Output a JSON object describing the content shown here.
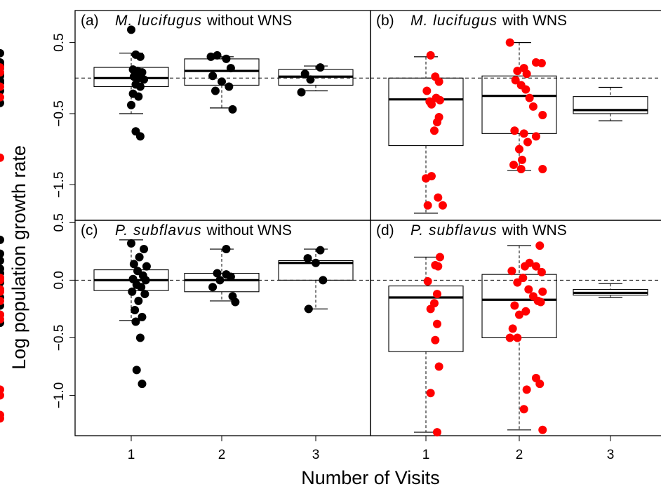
{
  "figure": {
    "ylabel": "Log population growth rate",
    "xlabel": "Number of Visits"
  },
  "colors": {
    "without_wns": "#000000",
    "with_wns": "#ff0000"
  },
  "chart_data": [
    {
      "type": "boxplot",
      "panel_letter": "(a)",
      "title_species": "M. lucifugus",
      "title_rest": "without WNS",
      "point_color": "#000000",
      "categories": [
        "1",
        "2",
        "3"
      ],
      "ylim": [
        -2.0,
        0.95
      ],
      "yticks": [
        0.5,
        -0.5,
        -1.5
      ],
      "ytick_labels": [
        "0.5",
        "-0.5",
        "-1.5"
      ],
      "reference_line_y": 0,
      "boxes": [
        {
          "x": 1,
          "lower": -0.5,
          "q1": -0.12,
          "median": 0.0,
          "q3": 0.15,
          "upper": 0.35
        },
        {
          "x": 2,
          "lower": -0.42,
          "q1": -0.1,
          "median": 0.1,
          "q3": 0.27,
          "upper": 0.3
        },
        {
          "x": 3,
          "lower": -0.18,
          "q1": -0.1,
          "median": 0.02,
          "q3": 0.12,
          "upper": 0.17
        }
      ],
      "points": [
        [
          0.95,
          0.35
        ],
        [
          1.0,
          0.68
        ],
        [
          1.05,
          0.33
        ],
        [
          1.1,
          0.3
        ],
        [
          0.88,
          0.22
        ],
        [
          0.92,
          0.18
        ],
        [
          0.97,
          0.14
        ],
        [
          1.02,
          0.12
        ],
        [
          1.07,
          0.1
        ],
        [
          1.12,
          0.08
        ],
        [
          0.9,
          0.05
        ],
        [
          0.96,
          0.03
        ],
        [
          1.03,
          0.02
        ],
        [
          1.08,
          0.0
        ],
        [
          1.14,
          -0.02
        ],
        [
          0.93,
          -0.04
        ],
        [
          0.99,
          -0.07
        ],
        [
          1.05,
          -0.09
        ],
        [
          1.1,
          -0.12
        ],
        [
          0.95,
          -0.18
        ],
        [
          1.02,
          -0.22
        ],
        [
          1.08,
          -0.26
        ],
        [
          0.92,
          -0.35
        ],
        [
          1.0,
          -0.38
        ],
        [
          1.05,
          -0.75
        ],
        [
          1.1,
          -0.82
        ],
        [
          1.88,
          0.3
        ],
        [
          1.95,
          0.32
        ],
        [
          2.05,
          0.27
        ],
        [
          2.1,
          0.14
        ],
        [
          1.9,
          0.03
        ],
        [
          2.0,
          -0.05
        ],
        [
          2.08,
          -0.12
        ],
        [
          1.93,
          -0.18
        ],
        [
          2.12,
          -0.44
        ],
        [
          2.92,
          0.06
        ],
        [
          3.05,
          0.15
        ],
        [
          2.98,
          -0.02
        ],
        [
          2.88,
          -0.2
        ]
      ]
    },
    {
      "type": "boxplot",
      "panel_letter": "(b)",
      "title_species": "M. lucifugus",
      "title_rest": "with WNS",
      "point_color": "#ff0000",
      "categories": [
        "1",
        "2",
        "3"
      ],
      "ylim": [
        -2.0,
        0.95
      ],
      "reference_line_y": 0,
      "boxes": [
        {
          "x": 1,
          "lower": -1.9,
          "q1": -0.95,
          "median": -0.3,
          "q3": 0.0,
          "upper": 0.3
        },
        {
          "x": 2,
          "lower": -1.3,
          "q1": -0.78,
          "median": -0.25,
          "q3": 0.03,
          "upper": 0.5
        },
        {
          "x": 3,
          "lower": -0.6,
          "q1": -0.5,
          "median": -0.45,
          "q3": -0.26,
          "upper": -0.13
        }
      ],
      "points": [
        [
          1.05,
          0.32
        ],
        [
          0.9,
          0.15
        ],
        [
          0.93,
          0.08
        ],
        [
          1.1,
          0.02
        ],
        [
          1.14,
          -0.05
        ],
        [
          0.96,
          -0.12
        ],
        [
          1.01,
          -0.18
        ],
        [
          0.99,
          -0.27
        ],
        [
          1.11,
          -0.28
        ],
        [
          1.15,
          -0.31
        ],
        [
          1.04,
          -0.33
        ],
        [
          1.06,
          -0.37
        ],
        [
          1.14,
          -0.55
        ],
        [
          1.12,
          -0.62
        ],
        [
          1.09,
          -0.74
        ],
        [
          0.97,
          -1.12
        ],
        [
          1.06,
          -1.38
        ],
        [
          1.0,
          -1.41
        ],
        [
          1.13,
          -1.68
        ],
        [
          1.18,
          -1.79
        ],
        [
          1.02,
          -1.79
        ],
        [
          1.9,
          0.5
        ],
        [
          2.05,
          0.14
        ],
        [
          1.98,
          0.1
        ],
        [
          2.08,
          0.06
        ],
        [
          2.18,
          0.22
        ],
        [
          2.24,
          0.21
        ],
        [
          1.96,
          -0.03
        ],
        [
          2.02,
          -0.1
        ],
        [
          2.07,
          -0.16
        ],
        [
          2.11,
          -0.28
        ],
        [
          2.15,
          -0.4
        ],
        [
          2.25,
          -0.52
        ],
        [
          1.95,
          -0.74
        ],
        [
          2.05,
          -0.78
        ],
        [
          2.18,
          -0.82
        ],
        [
          2.09,
          -0.9
        ],
        [
          2.0,
          -1.0
        ],
        [
          2.03,
          -1.15
        ],
        [
          1.94,
          -1.22
        ],
        [
          2.02,
          -1.28
        ],
        [
          2.25,
          -1.28
        ]
      ]
    },
    {
      "type": "boxplot",
      "panel_letter": "(c)",
      "title_species": "P. subflavus",
      "title_rest": "without WNS",
      "point_color": "#000000",
      "categories": [
        "1",
        "2",
        "3"
      ],
      "ylim": [
        -1.35,
        0.52
      ],
      "yticks": [
        0.5,
        0.0,
        -0.5,
        -1.0
      ],
      "ytick_labels": [
        "0.5",
        "0.0",
        "-0.5",
        "-1.0"
      ],
      "reference_line_y": 0,
      "boxes": [
        {
          "x": 1,
          "lower": -0.35,
          "q1": -0.09,
          "median": 0.0,
          "q3": 0.09,
          "upper": 0.35
        },
        {
          "x": 2,
          "lower": -0.18,
          "q1": -0.1,
          "median": 0.0,
          "q3": 0.06,
          "upper": 0.27
        },
        {
          "x": 3,
          "lower": -0.25,
          "q1": 0.0,
          "median": 0.15,
          "q3": 0.17,
          "upper": 0.27
        }
      ],
      "points": [
        [
          0.9,
          0.35
        ],
        [
          1.0,
          0.32
        ],
        [
          1.14,
          0.27
        ],
        [
          0.96,
          0.23
        ],
        [
          1.09,
          0.2
        ],
        [
          0.86,
          0.17
        ],
        [
          1.03,
          0.14
        ],
        [
          1.17,
          0.12
        ],
        [
          0.92,
          0.1
        ],
        [
          1.07,
          0.08
        ],
        [
          0.98,
          0.06
        ],
        [
          1.13,
          0.04
        ],
        [
          0.88,
          0.02
        ],
        [
          1.02,
          0.01
        ],
        [
          1.16,
          0.0
        ],
        [
          0.94,
          -0.02
        ],
        [
          1.06,
          -0.04
        ],
        [
          1.11,
          -0.06
        ],
        [
          0.9,
          -0.08
        ],
        [
          1.01,
          -0.1
        ],
        [
          1.15,
          -0.12
        ],
        [
          0.97,
          -0.15
        ],
        [
          1.08,
          -0.18
        ],
        [
          0.93,
          -0.22
        ],
        [
          1.04,
          -0.26
        ],
        [
          0.86,
          -0.3
        ],
        [
          1.12,
          -0.32
        ],
        [
          0.95,
          -0.37
        ],
        [
          1.05,
          -0.36
        ],
        [
          1.1,
          -0.5
        ],
        [
          1.06,
          -0.78
        ],
        [
          1.12,
          -0.9
        ],
        [
          2.05,
          0.27
        ],
        [
          1.95,
          0.06
        ],
        [
          2.05,
          0.05
        ],
        [
          2.1,
          0.03
        ],
        [
          1.98,
          0.0
        ],
        [
          1.9,
          -0.06
        ],
        [
          2.12,
          -0.14
        ],
        [
          2.15,
          -0.19
        ],
        [
          3.05,
          0.26
        ],
        [
          2.95,
          0.19
        ],
        [
          3.0,
          0.15
        ],
        [
          3.08,
          0.0
        ],
        [
          2.96,
          -0.25
        ]
      ]
    },
    {
      "type": "boxplot",
      "panel_letter": "(d)",
      "title_species": "P. subflavus",
      "title_rest": "with WNS",
      "point_color": "#ff0000",
      "categories": [
        "1",
        "2",
        "3"
      ],
      "ylim": [
        -1.35,
        0.52
      ],
      "reference_line_y": 0,
      "boxes": [
        {
          "x": 1,
          "lower": -1.32,
          "q1": -0.62,
          "median": -0.15,
          "q3": -0.05,
          "upper": 0.2
        },
        {
          "x": 2,
          "lower": -1.3,
          "q1": -0.5,
          "median": -0.17,
          "q3": 0.05,
          "upper": 0.3
        },
        {
          "x": 3,
          "lower": -0.15,
          "q1": -0.13,
          "median": -0.11,
          "q3": -0.08,
          "upper": -0.03
        }
      ],
      "points": [
        [
          1.15,
          0.2
        ],
        [
          1.1,
          0.13
        ],
        [
          1.13,
          0.12
        ],
        [
          0.85,
          0.02
        ],
        [
          0.92,
          0.0
        ],
        [
          1.02,
          -0.01
        ],
        [
          0.86,
          -0.08
        ],
        [
          0.97,
          -0.1
        ],
        [
          1.12,
          -0.12
        ],
        [
          0.9,
          -0.18
        ],
        [
          1.09,
          -0.2
        ],
        [
          1.05,
          -0.25
        ],
        [
          0.93,
          -0.3
        ],
        [
          0.96,
          -0.34
        ],
        [
          1.12,
          -0.38
        ],
        [
          1.1,
          -0.52
        ],
        [
          1.14,
          -0.75
        ],
        [
          0.95,
          -0.95
        ],
        [
          1.05,
          -0.98
        ],
        [
          0.99,
          -1.0
        ],
        [
          0.9,
          -1.17
        ],
        [
          0.84,
          -1.2
        ],
        [
          1.12,
          -1.32
        ],
        [
          2.22,
          0.3
        ],
        [
          2.11,
          0.15
        ],
        [
          2.06,
          0.12
        ],
        [
          2.18,
          0.12
        ],
        [
          1.92,
          0.08
        ],
        [
          2.24,
          0.07
        ],
        [
          2.04,
          0.02
        ],
        [
          1.98,
          -0.02
        ],
        [
          2.1,
          -0.08
        ],
        [
          2.25,
          -0.1
        ],
        [
          2.15,
          -0.14
        ],
        [
          2.2,
          -0.18
        ],
        [
          2.23,
          -0.19
        ],
        [
          1.95,
          -0.22
        ],
        [
          2.07,
          -0.27
        ],
        [
          2.0,
          -0.3
        ],
        [
          1.93,
          -0.42
        ],
        [
          1.9,
          -0.5
        ],
        [
          1.98,
          -0.5
        ],
        [
          2.18,
          -0.85
        ],
        [
          2.22,
          -0.9
        ],
        [
          2.08,
          -0.95
        ],
        [
          2.05,
          -1.12
        ],
        [
          2.25,
          -1.3
        ]
      ]
    }
  ]
}
